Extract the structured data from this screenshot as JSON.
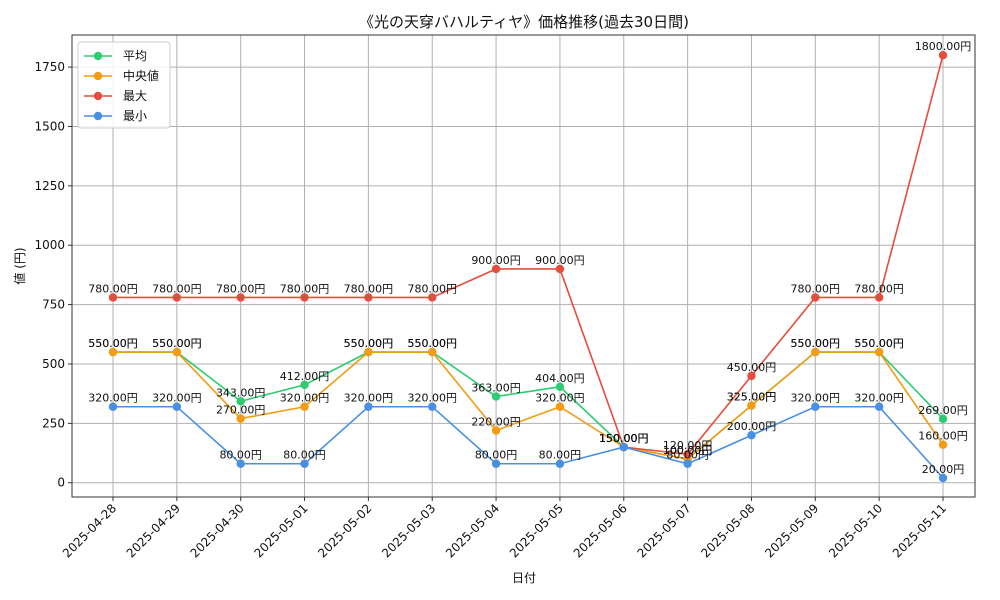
{
  "chart_data": {
    "type": "line",
    "title": "《光の天穿バハルティヤ》価格推移(過去30日間)",
    "xlabel": "日付",
    "ylabel": "値 (円)",
    "categories": [
      "2025-04-28",
      "2025-04-29",
      "2025-04-30",
      "2025-05-01",
      "2025-05-02",
      "2025-05-03",
      "2025-05-04",
      "2025-05-05",
      "2025-05-06",
      "2025-05-07",
      "2025-05-08",
      "2025-05-09",
      "2025-05-10",
      "2025-05-11"
    ],
    "yticks": [
      0,
      250,
      500,
      750,
      1000,
      1250,
      1500,
      1750
    ],
    "ylim": [
      -60,
      1885
    ],
    "grid": true,
    "legend_position": "top-left",
    "value_suffix": "円",
    "series": [
      {
        "name": "平均",
        "color": "#2ecc71",
        "values": [
          550,
          550,
          343,
          412,
          550,
          550,
          363,
          404,
          150,
          100,
          325,
          550,
          550,
          269
        ],
        "labels": [
          "550.00円",
          "550.00円",
          "343.00円",
          "412.00円",
          "550.00円",
          "550.00円",
          "363.00円",
          "404.00円",
          "150.00円",
          "100.00円",
          "325.00円",
          "550.00円",
          "550.00円",
          "269.00円"
        ]
      },
      {
        "name": "中央値",
        "color": "#f39c12",
        "values": [
          550,
          550,
          270,
          320,
          550,
          550,
          220,
          320,
          150,
          100,
          325,
          550,
          550,
          160
        ],
        "labels": [
          "550.00円",
          "550.00円",
          "270.00円",
          "320.00円",
          "550.00円",
          "550.00円",
          "220.00円",
          "320.00円",
          "150.00円",
          "100.00円",
          "325.00円",
          "550.00円",
          "550.00円",
          "160.00円"
        ]
      },
      {
        "name": "最大",
        "color": "#e74c3c",
        "values": [
          780,
          780,
          780,
          780,
          780,
          780,
          900,
          900,
          150,
          120,
          450,
          780,
          780,
          1800
        ],
        "labels": [
          "780.00円",
          "780.00円",
          "780.00円",
          "780.00円",
          "780.00円",
          "780.00円",
          "900.00円",
          "900.00円",
          "150.00円",
          "120.00円",
          "450.00円",
          "780.00円",
          "780.00円",
          "1800.00円"
        ]
      },
      {
        "name": "最小",
        "color": "#4a90e2",
        "values": [
          320,
          320,
          80,
          80,
          320,
          320,
          80,
          80,
          150,
          80,
          200,
          320,
          320,
          20
        ],
        "labels": [
          "320.00円",
          "320.00円",
          "80.00円",
          "80.00円",
          "320.00円",
          "320.00円",
          "80.00円",
          "80.00円",
          "150.00円",
          "80.00円",
          "200.00円",
          "320.00円",
          "320.00円",
          "20.00円"
        ]
      }
    ]
  }
}
